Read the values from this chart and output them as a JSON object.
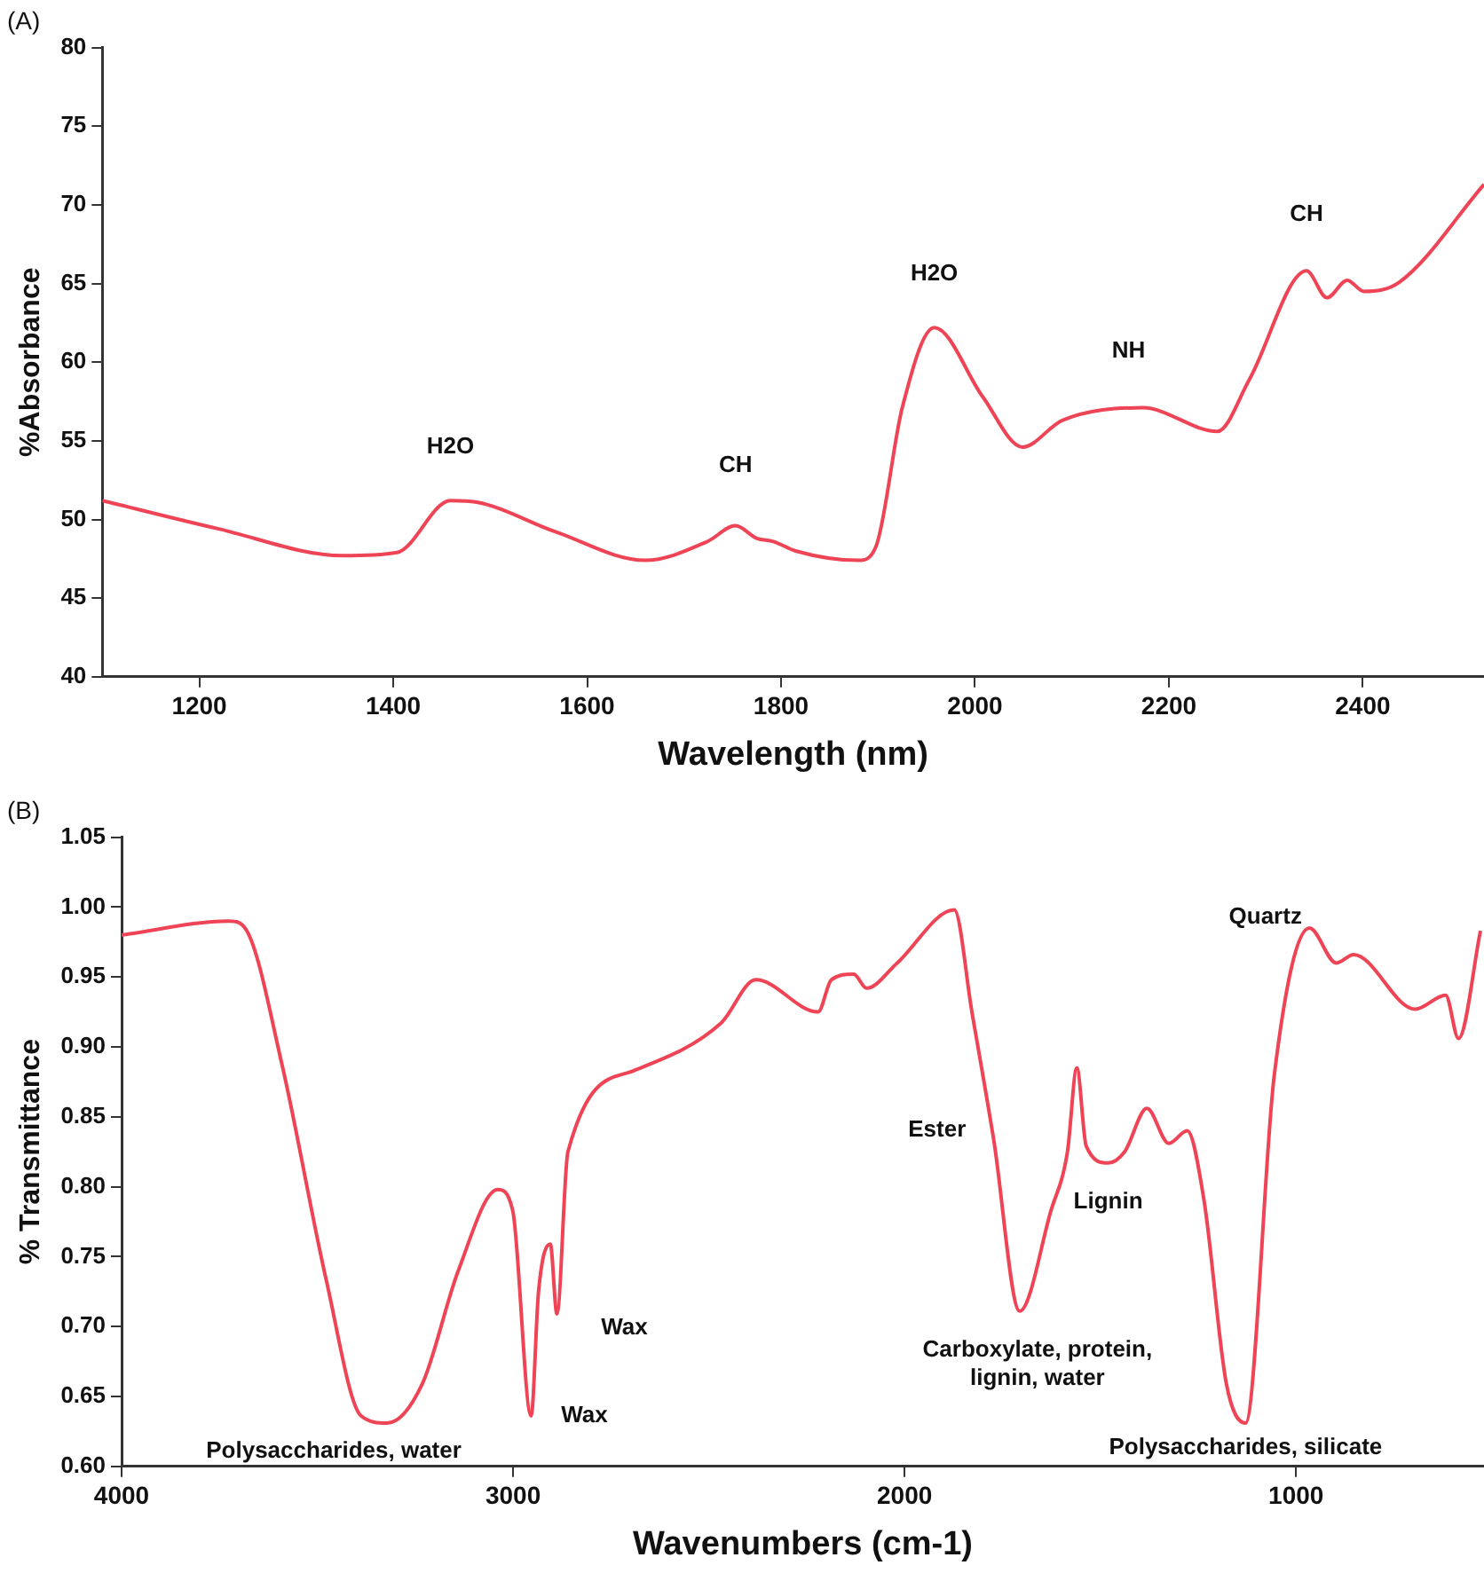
{
  "chart_data": [
    {
      "type": "line",
      "title": "(A)",
      "xlabel": "Wavelength (nm)",
      "ylabel": "%Absorbance",
      "xlim": [
        1100,
        2525
      ],
      "xticks": [
        1200,
        1400,
        1600,
        1800,
        2000,
        2200,
        2400
      ],
      "ylim": [
        40,
        80
      ],
      "yticks": [
        40,
        45,
        50,
        55,
        60,
        65,
        70,
        75,
        80
      ],
      "grid": false,
      "legend": false,
      "marker": "none",
      "line_style": "solid",
      "series": [
        {
          "color": "#ee4455",
          "x": [
            1100,
            1220,
            1348,
            1404,
            1459,
            1486,
            1568,
            1660,
            1724,
            1753,
            1775,
            1792,
            1815,
            1880,
            1898,
            1925,
            1958,
            2008,
            2049,
            2090,
            2173,
            2250,
            2283,
            2342,
            2363,
            2384,
            2401,
            2438,
            2525
          ],
          "values": [
            51.2,
            49.4,
            47.7,
            47.9,
            51.2,
            51.1,
            49.2,
            47.4,
            48.6,
            49.6,
            48.8,
            48.6,
            48.0,
            47.4,
            48.3,
            57.1,
            62.2,
            57.8,
            54.6,
            56.3,
            57.1,
            55.6,
            58.9,
            65.8,
            64.1,
            65.2,
            64.5,
            65.1,
            71.3
          ]
        }
      ],
      "annotations": [
        {
          "text": "H2O",
          "x": 1459,
          "y": 51.2
        },
        {
          "text": "CH",
          "x": 1753,
          "y": 49.6
        },
        {
          "text": "H2O",
          "x": 1958,
          "y": 62.2
        },
        {
          "text": "NH",
          "x": 2173,
          "y": 57.1
        },
        {
          "text": "CH",
          "x": 2342,
          "y": 65.8
        }
      ]
    },
    {
      "type": "line",
      "title": "(B)",
      "xlabel": "Wavenumbers (cm-1)",
      "ylabel": "% Transmittance",
      "xlim": [
        4000,
        520
      ],
      "xticks": [
        4000,
        3000,
        2000,
        1000
      ],
      "ylim": [
        0.6,
        1.05
      ],
      "yticks": [
        {
          "value": 0.6,
          "label": "0.60"
        },
        {
          "value": 0.65,
          "label": "0.65"
        },
        {
          "value": 0.7,
          "label": "0.70"
        },
        {
          "value": 0.75,
          "label": "0.75"
        },
        {
          "value": 0.8,
          "label": "0.80"
        },
        {
          "value": 0.85,
          "label": "0.85"
        },
        {
          "value": 0.9,
          "label": "0.90"
        },
        {
          "value": 0.95,
          "label": "0.95"
        },
        {
          "value": 1.0,
          "label": "1.00"
        },
        {
          "value": 1.05,
          "label": "1.05"
        }
      ],
      "grid": false,
      "legend": false,
      "marker": "none",
      "line_style": "solid",
      "series": [
        {
          "color": "#ee4455",
          "x": [
            4000,
            3724,
            3680,
            3590,
            3477,
            3388,
            3322,
            3232,
            3140,
            3039,
            3001,
            2954,
            2935,
            2905,
            2888,
            2860,
            2692,
            2469,
            2380,
            2221,
            2187,
            2130,
            2097,
            2019,
            1873,
            1828,
            1772,
            1706,
            1626,
            1584,
            1560,
            1536,
            1480,
            1438,
            1381,
            1325,
            1278,
            1235,
            1178,
            1129,
            1056,
            966,
            897,
            853,
            696,
            618,
            585,
            529
          ],
          "values": [
            0.98,
            0.99,
            0.983,
            0.887,
            0.733,
            0.636,
            0.631,
            0.659,
            0.74,
            0.798,
            0.783,
            0.636,
            0.725,
            0.759,
            0.709,
            0.825,
            0.883,
            0.917,
            0.948,
            0.925,
            0.948,
            0.952,
            0.942,
            0.96,
            0.998,
            0.925,
            0.833,
            0.711,
            0.783,
            0.825,
            0.885,
            0.829,
            0.817,
            0.825,
            0.856,
            0.831,
            0.84,
            0.79,
            0.659,
            0.631,
            0.879,
            0.985,
            0.96,
            0.966,
            0.927,
            0.937,
            0.906,
            0.983
          ]
        }
      ],
      "annotations": [
        {
          "text": "Polysaccharides, water",
          "x": 3322,
          "y": 0.631
        },
        {
          "text": "Wax",
          "x": 2954,
          "y": 0.636
        },
        {
          "text": "Wax",
          "x": 2888,
          "y": 0.709
        },
        {
          "text": "Ester",
          "x": 1772,
          "y": 0.833
        },
        {
          "text": "Lignin",
          "x": 1480,
          "y": 0.817
        },
        {
          "text": "Carboxylate, protein,\nlignin, water",
          "x": 1706,
          "y": 0.711
        },
        {
          "text": "Polysaccharides, silicate",
          "x": 1129,
          "y": 0.631
        },
        {
          "text": "Quartz",
          "x": 897,
          "y": 0.96
        }
      ]
    }
  ]
}
